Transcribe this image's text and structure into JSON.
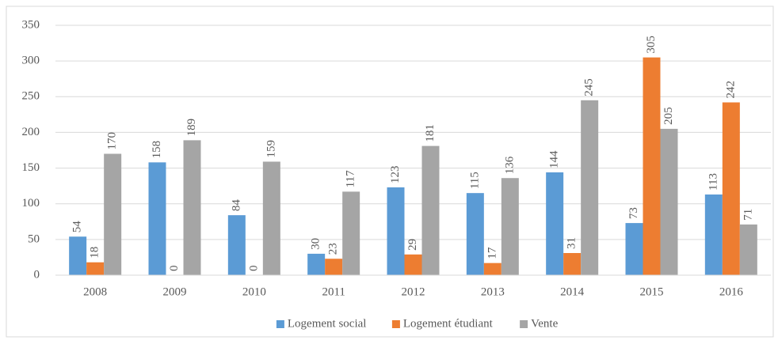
{
  "chart_data": {
    "type": "bar",
    "categories": [
      "2008",
      "2009",
      "2010",
      "2011",
      "2012",
      "2013",
      "2014",
      "2015",
      "2016"
    ],
    "series": [
      {
        "name": "Logement social",
        "color": "#5b9bd5",
        "values": [
          54,
          158,
          84,
          30,
          123,
          115,
          144,
          73,
          113
        ]
      },
      {
        "name": "Logement étudiant",
        "color": "#ed7d31",
        "values": [
          18,
          0,
          0,
          23,
          29,
          17,
          31,
          305,
          242
        ]
      },
      {
        "name": "Vente",
        "color": "#a5a5a5",
        "values": [
          170,
          189,
          159,
          117,
          181,
          136,
          245,
          205,
          71
        ]
      }
    ],
    "ylim": [
      0,
      350
    ],
    "yticks": [
      0,
      50,
      100,
      150,
      200,
      250,
      300,
      350
    ],
    "grid": true,
    "legend": "bottom"
  }
}
